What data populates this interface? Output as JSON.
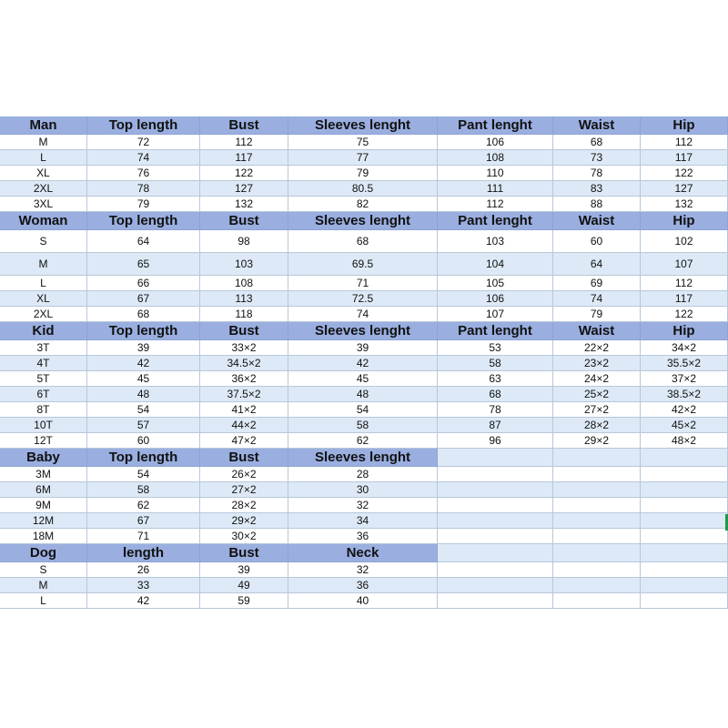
{
  "sections": [
    {
      "header": [
        "Man",
        "Top length",
        "Bust",
        "Sleeves lenght",
        "Pant lenght",
        "Waist",
        "Hip"
      ],
      "rows": [
        [
          "M",
          "72",
          "112",
          "75",
          "106",
          "68",
          "112"
        ],
        [
          "L",
          "74",
          "117",
          "77",
          "108",
          "73",
          "117"
        ],
        [
          "XL",
          "76",
          "122",
          "79",
          "110",
          "78",
          "122"
        ],
        [
          "2XL",
          "78",
          "127",
          "80.5",
          "111",
          "83",
          "127"
        ],
        [
          "3XL",
          "79",
          "132",
          "82",
          "112",
          "88",
          "132"
        ]
      ]
    },
    {
      "header": [
        "Woman",
        "Top length",
        "Bust",
        "Sleeves lenght",
        "Pant lenght",
        "Waist",
        "Hip"
      ],
      "rows": [
        [
          "S",
          "64",
          "98",
          "68",
          "103",
          "60",
          "102"
        ],
        [
          "M",
          "65",
          "103",
          "69.5",
          "104",
          "64",
          "107"
        ],
        [
          "L",
          "66",
          "108",
          "71",
          "105",
          "69",
          "112"
        ],
        [
          "XL",
          "67",
          "113",
          "72.5",
          "106",
          "74",
          "117"
        ],
        [
          "2XL",
          "68",
          "118",
          "74",
          "107",
          "79",
          "122"
        ]
      ]
    },
    {
      "header": [
        "Kid",
        "Top length",
        "Bust",
        "Sleeves lenght",
        "Pant lenght",
        "Waist",
        "Hip"
      ],
      "rows": [
        [
          "3T",
          "39",
          "33*2",
          "39",
          "53",
          "22*2",
          "34*2"
        ],
        [
          "4T",
          "42",
          "34.5*2",
          "42",
          "58",
          "23*2",
          "35.5*2"
        ],
        [
          "5T",
          "45",
          "36*2",
          "45",
          "63",
          "24*2",
          "37*2"
        ],
        [
          "6T",
          "48",
          "37.5*2",
          "48",
          "68",
          "25*2",
          "38.5*2"
        ],
        [
          "8T",
          "54",
          "41*2",
          "54",
          "78",
          "27*2",
          "42*2"
        ],
        [
          "10T",
          "57",
          "44*2",
          "58",
          "87",
          "28*2",
          "45*2"
        ],
        [
          "12T",
          "60",
          "47*2",
          "62",
          "96",
          "29*2",
          "48*2"
        ]
      ]
    },
    {
      "header": [
        "Baby",
        "Top length",
        "Bust",
        "Sleeves lenght"
      ],
      "rows": [
        [
          "3M",
          "54",
          "26*2",
          "28"
        ],
        [
          "6M",
          "58",
          "27*2",
          "30"
        ],
        [
          "9M",
          "62",
          "28*2",
          "32"
        ],
        [
          "12M",
          "67",
          "29*2",
          "34"
        ],
        [
          "18M",
          "71",
          "30*2",
          "36"
        ]
      ]
    },
    {
      "header": [
        "Dog",
        "length",
        "Bust",
        "Neck"
      ],
      "rows": [
        [
          "S",
          "26",
          "39",
          "32"
        ],
        [
          "M",
          "33",
          "49",
          "36"
        ],
        [
          "L",
          "42",
          "59",
          "40"
        ]
      ]
    }
  ],
  "colors": {
    "header_bg": "#9aafe0",
    "stripe_bg": "#dde9f6",
    "grid_line": "#b8c7da",
    "active_cell_marker": "#1a9a4a"
  }
}
